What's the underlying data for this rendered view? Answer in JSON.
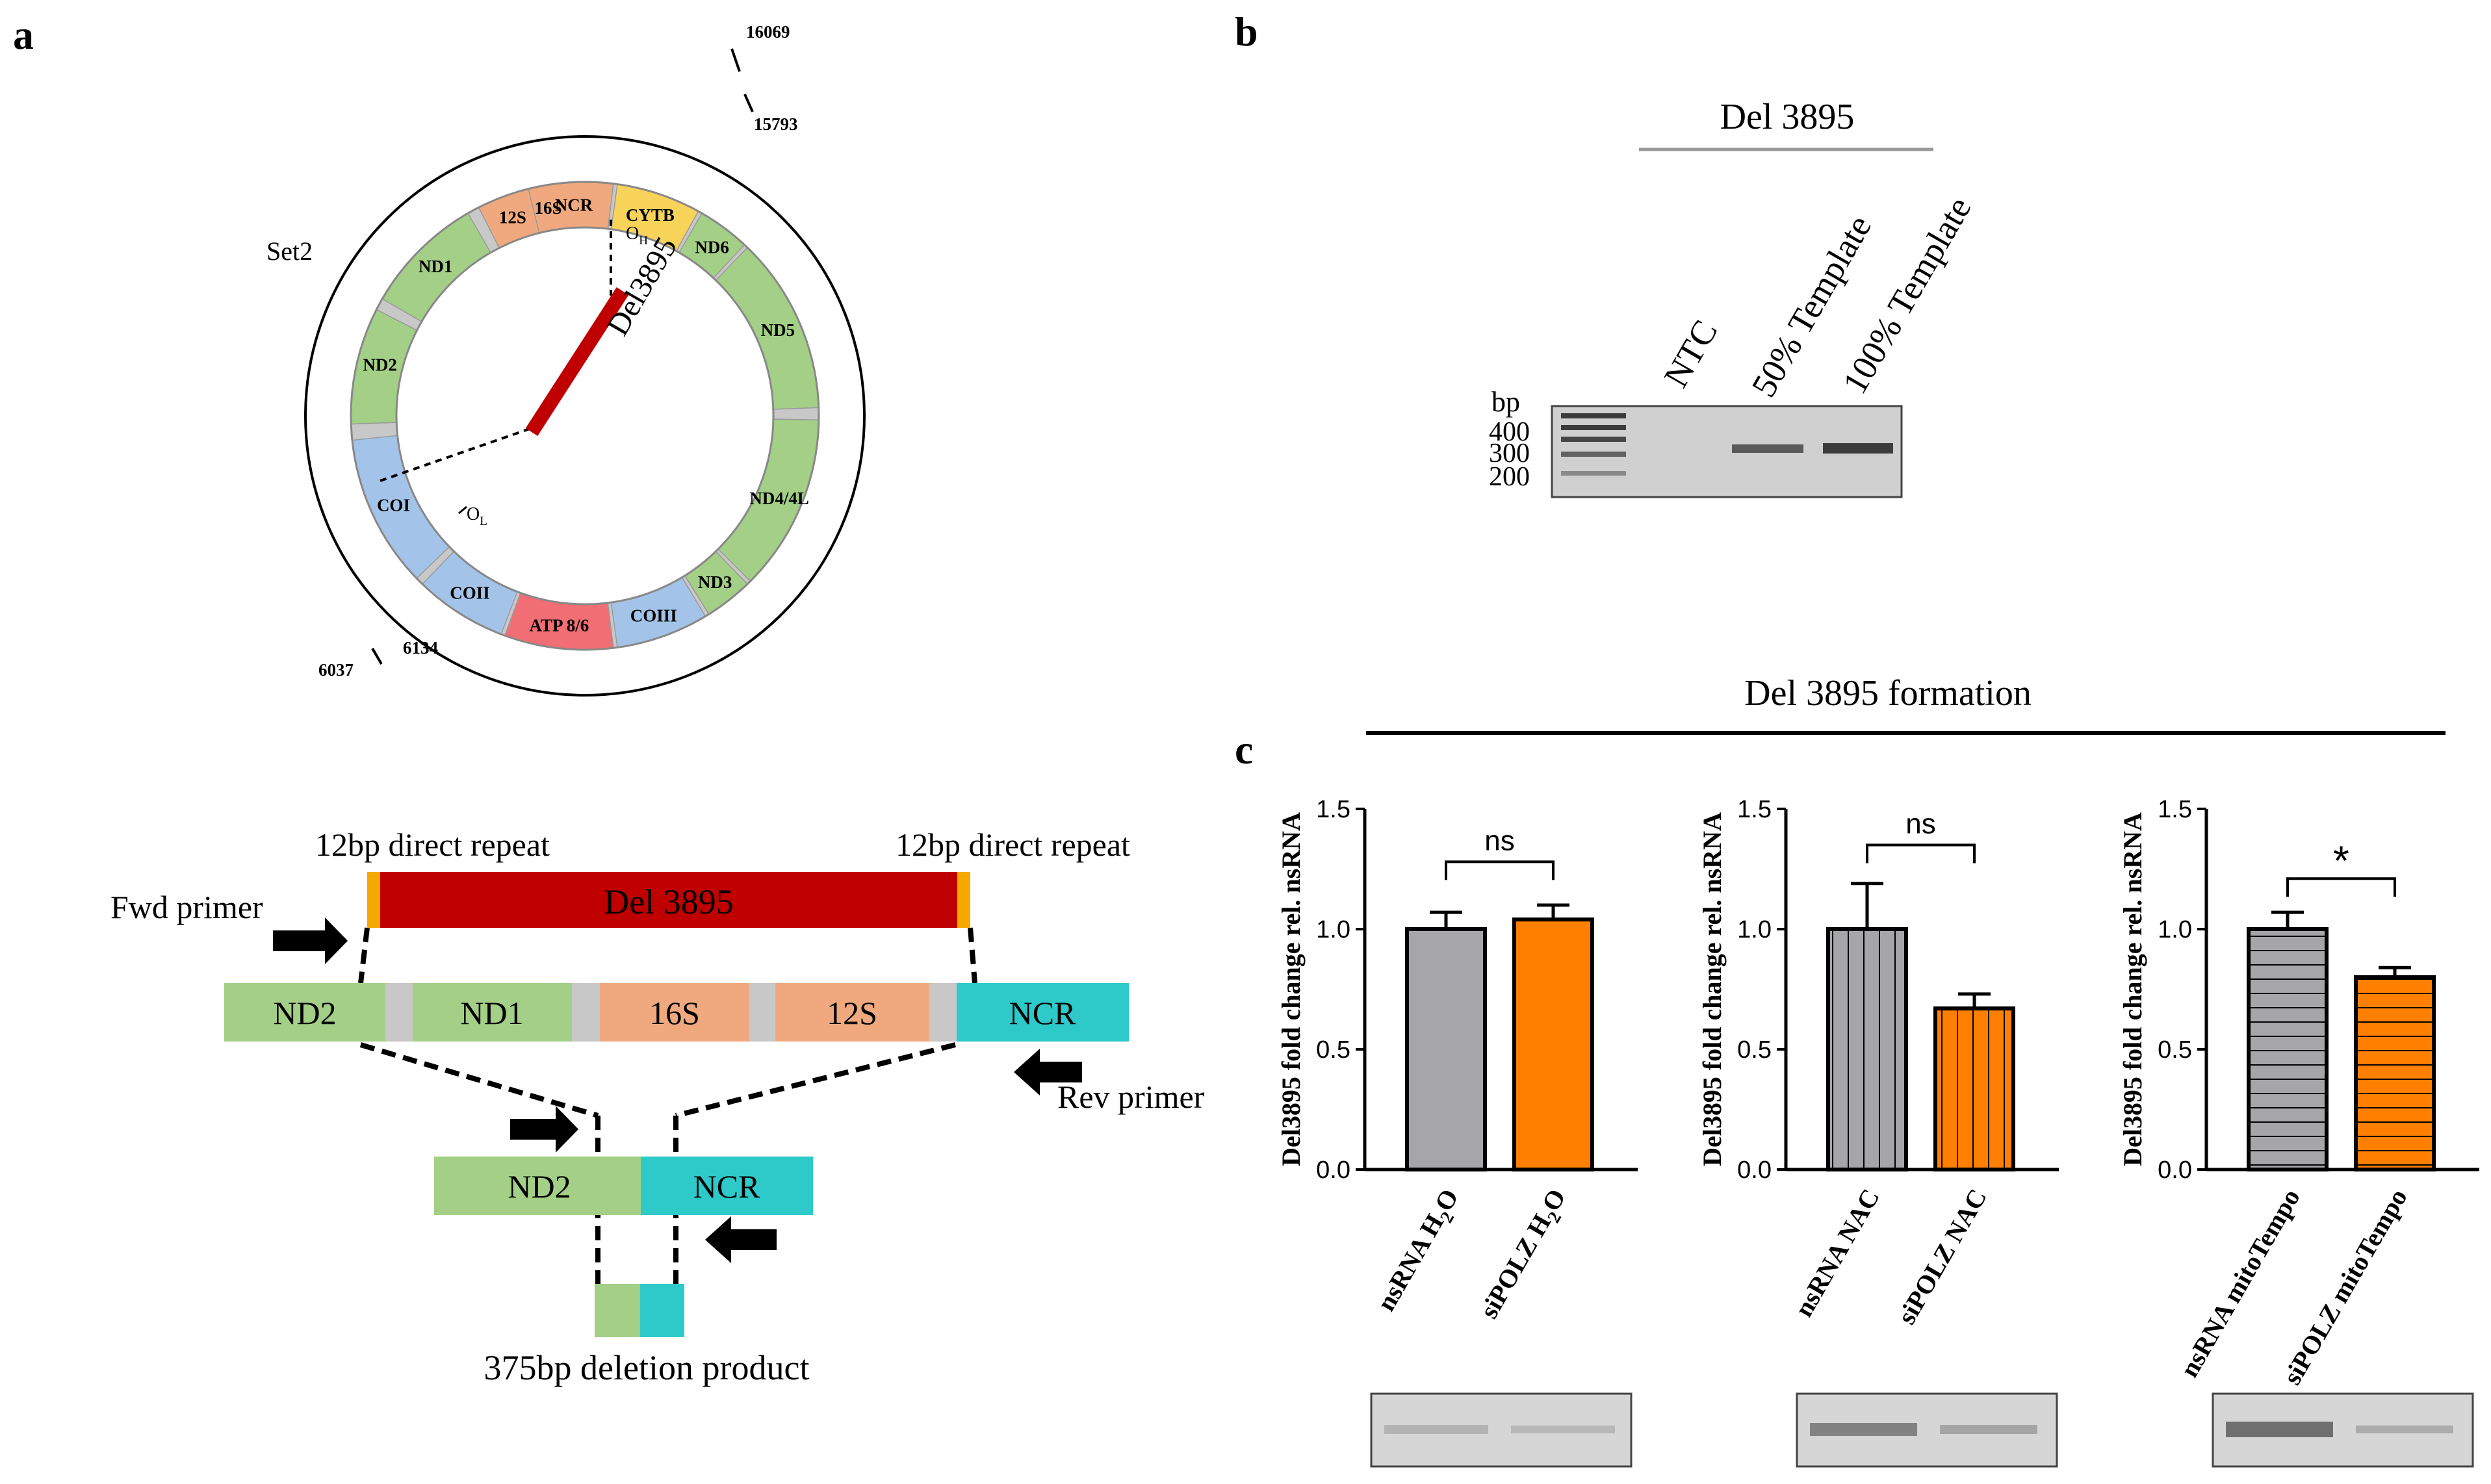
{
  "panel_labels": {
    "a": "a",
    "b": "b",
    "c": "c"
  },
  "colors": {
    "green": "#a3cf86",
    "salmon": "#f0a97e",
    "teal": "#2ec9c9",
    "yellow": "#f7d35a",
    "blue": "#a3c4e8",
    "red": "#f06e74",
    "deletion": "#c00000",
    "repeat": "#f5a800",
    "gray_bar": "#a6a6a8",
    "orange_bar": "#ff7f00",
    "gel_bg": "#d8d8d8"
  },
  "map": {
    "set_label": "Set2",
    "positions": {
      "p16069": "16069",
      "p15793": "15793",
      "p6134": "6134",
      "p6037": "6037"
    },
    "deletion_label": "Del3895",
    "oh_label": "O",
    "oh_sub": "H",
    "ol_label": "O",
    "ol_sub": "L",
    "segments": [
      {
        "id": "ncr",
        "label": "NCR",
        "color_key": "teal"
      },
      {
        "id": "cytb",
        "label": "CYTB",
        "color_key": "yellow"
      },
      {
        "id": "nd6",
        "label": "ND6",
        "color_key": "green"
      },
      {
        "id": "nd5",
        "label": "ND5",
        "color_key": "green"
      },
      {
        "id": "nd44l",
        "label": "ND4/4L",
        "color_key": "green"
      },
      {
        "id": "nd3",
        "label": "ND3",
        "color_key": "green"
      },
      {
        "id": "coiii",
        "label": "COIII",
        "color_key": "blue"
      },
      {
        "id": "atp",
        "label": "ATP 8/6",
        "color_key": "red"
      },
      {
        "id": "coii",
        "label": "COII",
        "color_key": "blue"
      },
      {
        "id": "coi",
        "label": "COI",
        "color_key": "blue"
      },
      {
        "id": "nd2",
        "label": "ND2",
        "color_key": "green"
      },
      {
        "id": "nd1",
        "label": "ND1",
        "color_key": "green"
      },
      {
        "id": "s16",
        "label": "16S",
        "color_key": "salmon"
      },
      {
        "id": "s12",
        "label": "12S",
        "color_key": "salmon"
      }
    ]
  },
  "schematic": {
    "repeat_left": "12bp direct repeat",
    "repeat_right": "12bp direct repeat",
    "deletion": "Del 3895",
    "fwd_primer": "Fwd primer",
    "rev_primer": "Rev primer",
    "genes": [
      "ND2",
      "ND1",
      "16S",
      "12S",
      "NCR"
    ],
    "product_genes": [
      "ND2",
      "NCR"
    ],
    "product_label": "375bp deletion  product"
  },
  "gel_b": {
    "title": "Del 3895",
    "lanes": [
      "NTC",
      "50% Template",
      "100% Template"
    ],
    "bp_label": "bp",
    "ladder": [
      "400",
      "300",
      "200"
    ]
  },
  "chart_c_title": "Del 3895 formation",
  "chart_data": [
    {
      "type": "bar",
      "title": "",
      "ylabel": "Del3895 fold change rel. nsRNA",
      "ylim": [
        0,
        1.5
      ],
      "yticks": [
        "0.0",
        "0.5",
        "1.0",
        "1.5"
      ],
      "categories": [
        "nsRNA H2O",
        "siPOLZ H2O"
      ],
      "values": [
        1.0,
        1.04
      ],
      "errors": [
        0.07,
        0.06
      ],
      "fill": "solid",
      "significance": "ns"
    },
    {
      "type": "bar",
      "title": "",
      "ylabel": "Del3895 fold change rel. nsRNA",
      "ylim": [
        0,
        1.5
      ],
      "yticks": [
        "0.0",
        "0.5",
        "1.0",
        "1.5"
      ],
      "categories": [
        "nsRNA NAC",
        "siPOLZ NAC"
      ],
      "values": [
        1.0,
        0.67
      ],
      "errors": [
        0.19,
        0.06
      ],
      "fill": "vertical",
      "significance": "ns"
    },
    {
      "type": "bar",
      "title": "",
      "ylabel": "Del3895 fold change rel. nsRNA",
      "ylim": [
        0,
        1.5
      ],
      "yticks": [
        "0.0",
        "0.5",
        "1.0",
        "1.5"
      ],
      "categories": [
        "nsRNA mitoTempo",
        "siPOLZ mitoTempo"
      ],
      "values": [
        1.0,
        0.8
      ],
      "errors": [
        0.07,
        0.04
      ],
      "fill": "horizontal",
      "significance": "*"
    }
  ]
}
